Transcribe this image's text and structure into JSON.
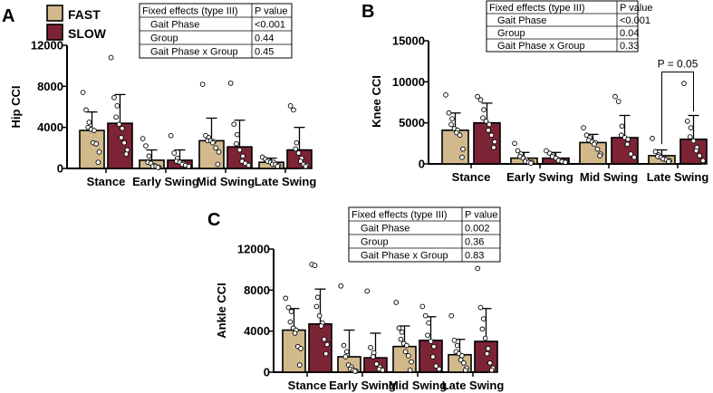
{
  "legend": {
    "items": [
      {
        "label": "FAST",
        "color": "#d2b98c"
      },
      {
        "label": "SLOW",
        "color": "#7c2336"
      }
    ]
  },
  "colors": {
    "fast": "#d2b98c",
    "slow": "#7c2336",
    "axis": "#000000",
    "error_bar": "#000000",
    "point_fill": "#ffffff"
  },
  "chart_data": [
    {
      "panel_label": "A",
      "type": "bar",
      "ylabel": "Hip CCI",
      "xlabel": "",
      "categories": [
        "Stance",
        "Early Swing",
        "Mid Swing",
        "Late Swing"
      ],
      "ylim": [
        0,
        12000
      ],
      "yticks": [
        "0",
        "4000",
        "8000",
        "12000"
      ],
      "ytick_values": [
        0,
        4000,
        8000,
        12000
      ],
      "series": [
        {
          "name": "FAST",
          "values": [
            3700,
            800,
            2700,
            600
          ],
          "sd": [
            1800,
            1000,
            2200,
            400
          ],
          "points": [
            [
              7400,
              5700,
              4500,
              4000,
              3800,
              3700,
              2500,
              2400,
              1600,
              600
            ],
            [
              2900,
              2200,
              1200,
              600,
              500,
              300,
              200,
              200,
              100,
              100
            ],
            [
              8200,
              3200,
              3000,
              2700,
              2700,
              2600,
              2500,
              2000,
              1600,
              400
            ],
            [
              1100,
              900,
              800,
              700,
              600,
              600,
              400,
              400,
              300,
              200
            ]
          ]
        },
        {
          "name": "SLOW",
          "values": [
            4400,
            800,
            2100,
            1800
          ],
          "sd": [
            2800,
            1000,
            2600,
            2200
          ],
          "points": [
            [
              10800,
              6900,
              6100,
              5000,
              4300,
              3900,
              3000,
              2500,
              1800,
              1400
            ],
            [
              3200,
              1500,
              1000,
              700,
              600,
              500,
              400,
              300,
              200
            ],
            [
              8300,
              4300,
              3300,
              2400,
              1800,
              1200,
              700,
              500,
              300
            ],
            [
              6100,
              5700,
              2500,
              1900,
              1500,
              1000,
              700,
              400,
              300,
              200
            ]
          ]
        }
      ],
      "stats_table": {
        "header": [
          "Fixed effects (type III)",
          "P value"
        ],
        "rows": [
          [
            "Gait Phase",
            "<0.001"
          ],
          [
            "Group",
            "0.44"
          ],
          [
            "Gait Phase x Group",
            "0.45"
          ]
        ]
      },
      "annotations": []
    },
    {
      "panel_label": "B",
      "type": "bar",
      "ylabel": "Knee CCI",
      "xlabel": "",
      "categories": [
        "Stance",
        "Early Swing",
        "Mid Swing",
        "Late Swing"
      ],
      "ylim": [
        0,
        15000
      ],
      "yticks": [
        "0",
        "5000",
        "10000",
        "15000"
      ],
      "ytick_values": [
        0,
        5000,
        10000,
        15000
      ],
      "series": [
        {
          "name": "FAST",
          "values": [
            4100,
            700,
            2600,
            1000
          ],
          "sd": [
            2100,
            700,
            1000,
            700
          ],
          "points": [
            [
              8400,
              6200,
              5500,
              4800,
              4300,
              4100,
              3800,
              3500,
              1800,
              800
            ],
            [
              2500,
              1600,
              1200,
              900,
              700,
              500,
              300,
              200,
              200,
              100
            ],
            [
              4400,
              3500,
              3200,
              2900,
              2700,
              2600,
              2400,
              1800,
              1200,
              1000
            ],
            [
              3100,
              1500,
              1100,
              900,
              800,
              700,
              600,
              500,
              400,
              300
            ]
          ]
        },
        {
          "name": "SLOW",
          "values": [
            5000,
            700,
            3200,
            3000
          ],
          "sd": [
            2400,
            700,
            2700,
            2900
          ],
          "points": [
            [
              8200,
              7800,
              6600,
              5600,
              5200,
              4800,
              4100,
              3500,
              2700,
              2000
            ],
            [
              1600,
              1300,
              1100,
              900,
              700,
              500,
              400,
              300,
              200
            ],
            [
              8200,
              7600,
              4600,
              3500,
              3200,
              3000,
              2400,
              1200,
              800
            ],
            [
              9800,
              5200,
              4400,
              3300,
              2800,
              2000,
              1600,
              1000,
              400
            ]
          ]
        }
      ],
      "stats_table": {
        "header": [
          "Fixed effects (type III)",
          "P value"
        ],
        "rows": [
          [
            "Gait Phase",
            "<0.001"
          ],
          [
            "Group",
            "0.04"
          ],
          [
            "Gait Phase x Group",
            "0.33"
          ]
        ]
      },
      "annotations": [
        {
          "text": "P = 0.05",
          "category": "Late Swing",
          "y": 11200
        }
      ]
    },
    {
      "panel_label": "C",
      "type": "bar",
      "ylabel": "Ankle CCI",
      "xlabel": "",
      "categories": [
        "Stance",
        "Early Swing",
        "Mid Swing",
        "Late Swing"
      ],
      "ylim": [
        0,
        12000
      ],
      "yticks": [
        "0",
        "4000",
        "8000",
        "12000"
      ],
      "ytick_values": [
        0,
        4000,
        8000,
        12000
      ],
      "series": [
        {
          "name": "FAST",
          "values": [
            4100,
            1500,
            2500,
            1700
          ],
          "sd": [
            2100,
            2600,
            2000,
            1500
          ],
          "points": [
            [
              7200,
              6300,
              5900,
              4900,
              4300,
              4100,
              3800,
              2500,
              2300,
              700
            ],
            [
              8400,
              2600,
              2000,
              1500,
              700,
              500,
              300,
              200,
              100,
              100
            ],
            [
              6800,
              4300,
              3900,
              3200,
              2800,
              2600,
              2000,
              1600,
              1000,
              200
            ],
            [
              5500,
              3100,
              2600,
              2000,
              1800,
              1600,
              1200,
              900,
              400,
              200
            ]
          ]
        },
        {
          "name": "SLOW",
          "values": [
            4700,
            1400,
            3100,
            3000
          ],
          "sd": [
            3400,
            2400,
            2300,
            3200
          ],
          "points": [
            [
              10500,
              10400,
              7300,
              6400,
              5500,
              4800,
              4500,
              3200,
              2700,
              1800
            ],
            [
              7900,
              2400,
              1900,
              1500,
              800,
              500,
              300,
              200
            ],
            [
              6400,
              5500,
              4800,
              3600,
              3000,
              2500,
              1500,
              600,
              300
            ],
            [
              10100,
              6300,
              5200,
              4200,
              3300,
              2300,
              1800,
              900,
              400,
              200
            ]
          ]
        }
      ],
      "stats_table": {
        "header": [
          "Fixed effects (type III)",
          "P value"
        ],
        "rows": [
          [
            "Gait Phase",
            "0.002"
          ],
          [
            "Group",
            "0.36"
          ],
          [
            "Gait Phase x Group",
            "0.83"
          ]
        ]
      },
      "annotations": []
    }
  ]
}
